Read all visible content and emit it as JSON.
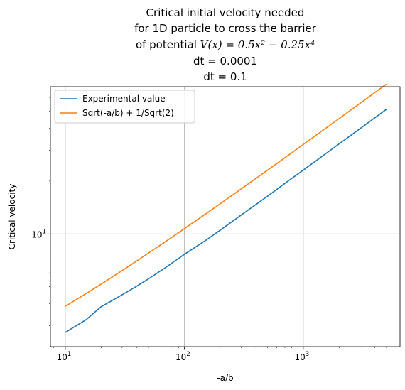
{
  "chart_data": {
    "type": "line",
    "title_lines": [
      "Critical initial velocity needed",
      "for 1D particle to cross the barrier",
      "of potential $V(x) = 0.5x^2 - 0.25x^4$",
      "dt = 0.0001",
      "dt = 0.1"
    ],
    "title_math": {
      "prefix": "of potential ",
      "formula": "V(x) = 0.5x² − 0.25x⁴"
    },
    "xlabel": "-a/b",
    "ylabel": "Critical velocity",
    "xscale": "log",
    "yscale": "log",
    "xlim": [
      7.5,
      6500
    ],
    "ylim": [
      2.28,
      69
    ],
    "x_ticks": [
      {
        "value": 10,
        "base": "10",
        "exp": "1"
      },
      {
        "value": 100,
        "base": "10",
        "exp": "2"
      },
      {
        "value": 1000,
        "base": "10",
        "exp": "3"
      }
    ],
    "y_ticks": [
      {
        "value": 10,
        "base": "10",
        "exp": "1"
      }
    ],
    "grid": true,
    "legend_position": "top-left",
    "series": [
      {
        "name": "Experimental value",
        "color": "#1f77b4",
        "x": [
          10,
          15,
          20,
          30,
          40,
          50,
          70,
          100,
          150,
          200,
          300,
          500,
          700,
          1000,
          2000,
          3000,
          5000
        ],
        "y": [
          2.75,
          3.25,
          3.85,
          4.5,
          5.05,
          5.55,
          6.45,
          7.65,
          9.15,
          10.5,
          12.8,
          16.4,
          19.4,
          23.1,
          32.6,
          39.8,
          51.3
        ]
      },
      {
        "name": "Sqrt(-a/b) + 1/Sqrt(2)",
        "color": "#ff7f0e",
        "x": [
          10,
          15,
          20,
          30,
          40,
          50,
          70,
          100,
          150,
          200,
          300,
          500,
          700,
          1000,
          2000,
          3000,
          5000
        ],
        "y": [
          3.87,
          4.58,
          5.18,
          6.18,
          7.03,
          7.78,
          9.07,
          10.71,
          12.95,
          14.85,
          18.03,
          23.07,
          27.16,
          32.33,
          45.43,
          55.48,
          71.42
        ]
      }
    ]
  }
}
